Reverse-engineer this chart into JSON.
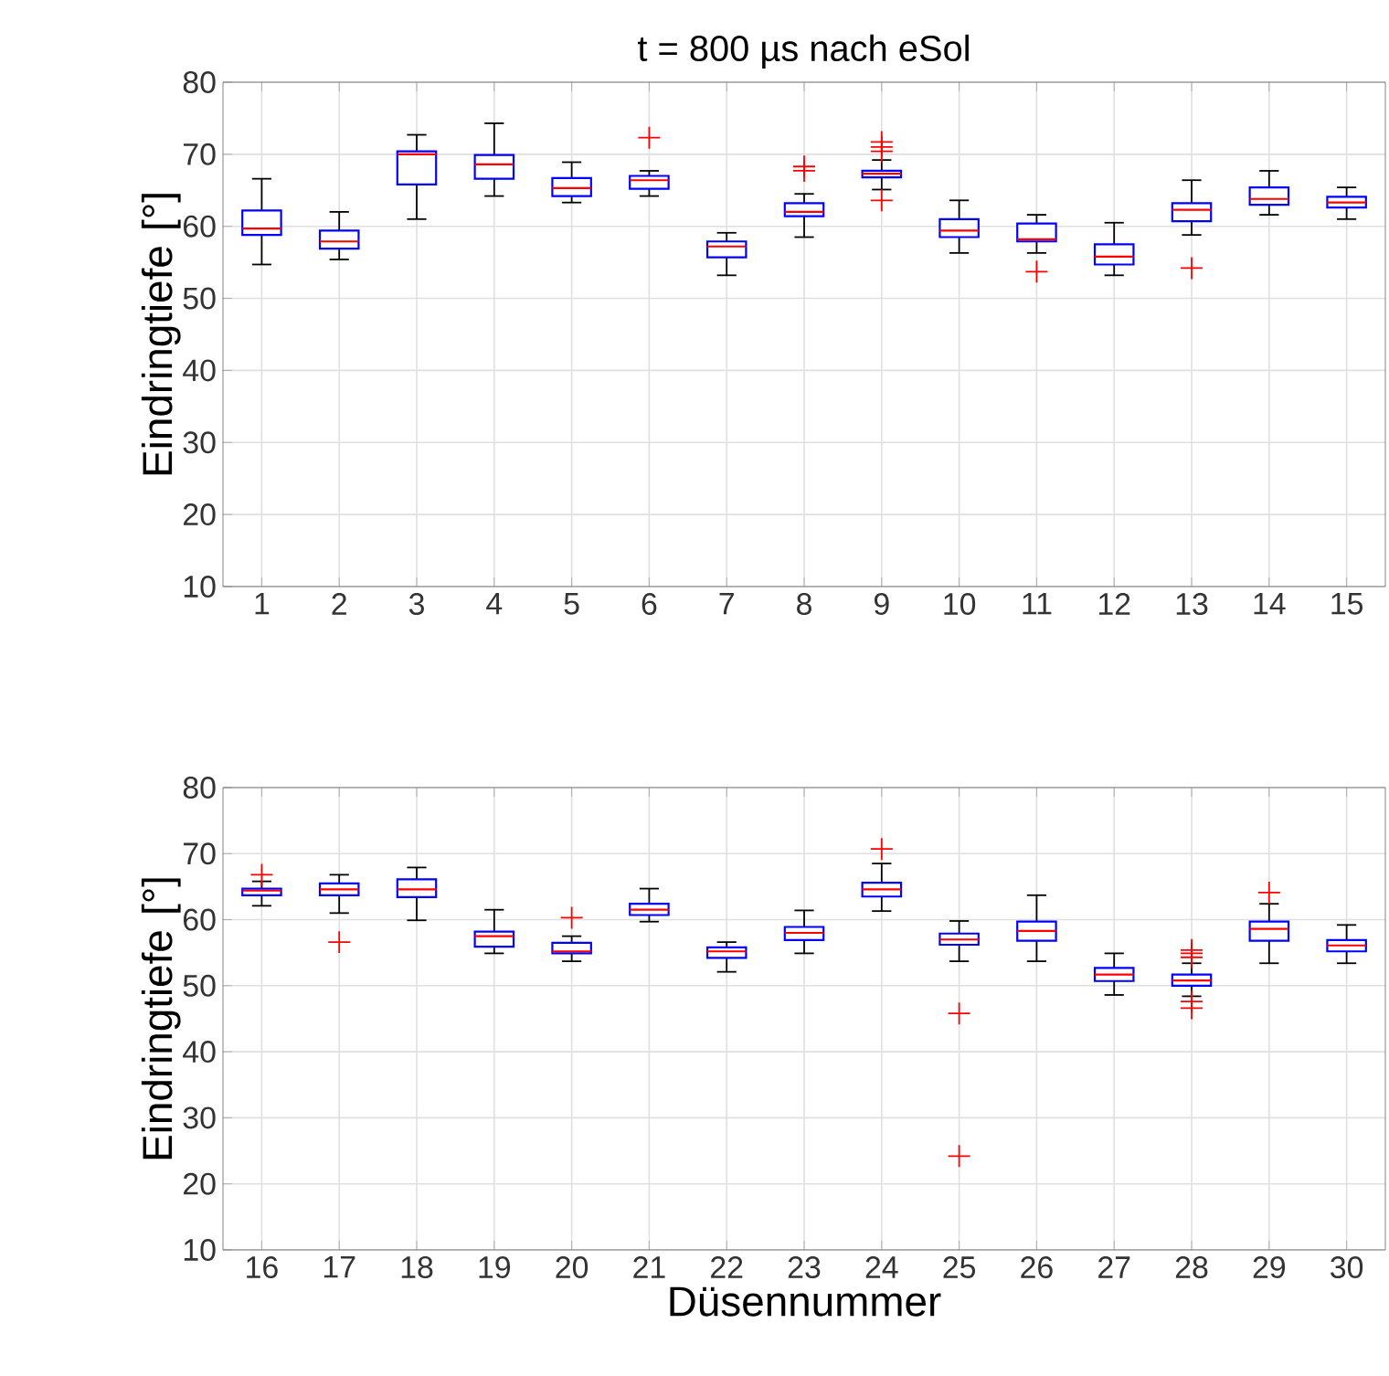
{
  "chart_data": [
    {
      "type": "box",
      "title": "t = 800 µs nach eSol",
      "ylabel": "Eindringtiefe [°]",
      "categories": [
        "1",
        "2",
        "3",
        "4",
        "5",
        "6",
        "7",
        "8",
        "9",
        "10",
        "11",
        "12",
        "13",
        "14",
        "15"
      ],
      "color": "#0000ff",
      "ylim": [
        10,
        80
      ],
      "yticks": [
        10,
        20,
        30,
        40,
        50,
        60,
        70,
        80
      ],
      "grid": true,
      "boxes": [
        {
          "low": 54.7,
          "q1": 58.8,
          "median": 59.7,
          "q3": 62.2,
          "high": 66.6
        },
        {
          "low": 55.4,
          "q1": 56.9,
          "median": 57.9,
          "q3": 59.4,
          "high": 62.0
        },
        {
          "low": 61.0,
          "q1": 65.8,
          "median": 70.0,
          "q3": 70.4,
          "high": 72.7
        },
        {
          "low": 64.2,
          "q1": 66.6,
          "median": 68.6,
          "q3": 69.9,
          "high": 74.3
        },
        {
          "low": 63.3,
          "q1": 64.2,
          "median": 65.3,
          "q3": 66.7,
          "high": 68.9
        },
        {
          "low": 64.2,
          "q1": 65.2,
          "median": 66.4,
          "q3": 67.0,
          "high": 67.7,
          "outliers": [
            72.3
          ]
        },
        {
          "low": 53.2,
          "q1": 55.7,
          "median": 57.2,
          "q3": 57.9,
          "high": 59.1
        },
        {
          "low": 58.5,
          "q1": 61.4,
          "median": 62.0,
          "q3": 63.2,
          "high": 64.5,
          "outliers": [
            68.3,
            67.7
          ]
        },
        {
          "low": 65.1,
          "q1": 66.8,
          "median": 67.3,
          "q3": 67.7,
          "high": 69.2,
          "outliers": [
            71.7,
            71.0,
            70.4,
            63.6
          ]
        },
        {
          "low": 56.3,
          "q1": 58.5,
          "median": 59.4,
          "q3": 61.0,
          "high": 63.6
        },
        {
          "low": 56.3,
          "q1": 57.9,
          "median": 58.2,
          "q3": 60.4,
          "high": 61.6,
          "outliers": [
            53.7
          ]
        },
        {
          "low": 53.2,
          "q1": 54.7,
          "median": 55.8,
          "q3": 57.5,
          "high": 60.5
        },
        {
          "low": 58.8,
          "q1": 60.7,
          "median": 62.3,
          "q3": 63.2,
          "high": 66.4,
          "outliers": [
            54.2
          ]
        },
        {
          "low": 61.6,
          "q1": 63.0,
          "median": 63.8,
          "q3": 65.4,
          "high": 67.7
        },
        {
          "low": 61.0,
          "q1": 62.6,
          "median": 63.3,
          "q3": 64.1,
          "high": 65.4
        }
      ]
    },
    {
      "type": "box",
      "ylabel": "Eindringtiefe [°]",
      "xlabel": "Düsennummer",
      "categories": [
        "16",
        "17",
        "18",
        "19",
        "20",
        "21",
        "22",
        "23",
        "24",
        "25",
        "26",
        "27",
        "28",
        "29",
        "30"
      ],
      "color": "#0000ff",
      "ylim": [
        10,
        80
      ],
      "yticks": [
        10,
        20,
        30,
        40,
        50,
        60,
        70,
        80
      ],
      "grid": true,
      "boxes": [
        {
          "low": 62.1,
          "q1": 63.7,
          "median": 64.4,
          "q3": 64.7,
          "high": 65.8,
          "outliers": [
            66.8
          ]
        },
        {
          "low": 61.0,
          "q1": 63.7,
          "median": 64.6,
          "q3": 65.5,
          "high": 66.8,
          "outliers": [
            56.6
          ]
        },
        {
          "low": 59.9,
          "q1": 63.4,
          "median": 64.6,
          "q3": 66.1,
          "high": 67.9
        },
        {
          "low": 54.9,
          "q1": 55.9,
          "median": 57.5,
          "q3": 58.2,
          "high": 61.5
        },
        {
          "low": 53.7,
          "q1": 54.9,
          "median": 55.2,
          "q3": 56.5,
          "high": 57.5,
          "outliers": [
            60.3
          ]
        },
        {
          "low": 59.7,
          "q1": 60.7,
          "median": 61.5,
          "q3": 62.4,
          "high": 64.7
        },
        {
          "low": 52.1,
          "q1": 54.2,
          "median": 55.2,
          "q3": 55.8,
          "high": 56.6
        },
        {
          "low": 54.9,
          "q1": 56.9,
          "median": 58.0,
          "q3": 58.9,
          "high": 61.4
        },
        {
          "low": 61.3,
          "q1": 63.5,
          "median": 64.6,
          "q3": 65.6,
          "high": 68.5,
          "outliers": [
            70.7
          ]
        },
        {
          "low": 53.7,
          "q1": 56.2,
          "median": 57.0,
          "q3": 57.9,
          "high": 59.8,
          "outliers": [
            45.8,
            24.2
          ]
        },
        {
          "low": 53.7,
          "q1": 56.8,
          "median": 58.3,
          "q3": 59.7,
          "high": 63.7
        },
        {
          "low": 48.6,
          "q1": 50.7,
          "median": 51.7,
          "q3": 52.7,
          "high": 54.9
        },
        {
          "low": 48.4,
          "q1": 50.0,
          "median": 50.8,
          "q3": 51.7,
          "high": 53.4,
          "outliers": [
            55.4,
            54.9,
            54.3,
            47.6,
            46.6
          ]
        },
        {
          "low": 53.4,
          "q1": 56.8,
          "median": 58.6,
          "q3": 59.7,
          "high": 62.4,
          "outliers": [
            64.1
          ]
        },
        {
          "low": 53.4,
          "q1": 55.2,
          "median": 56.1,
          "q3": 56.9,
          "high": 59.2
        }
      ]
    }
  ]
}
